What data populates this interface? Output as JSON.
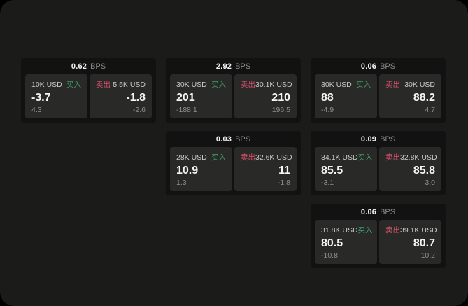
{
  "labels": {
    "bps_unit": "BPS",
    "buy": "买入",
    "sell": "卖出"
  },
  "colors": {
    "buy_green": "#3ca06a",
    "sell_red": "#d4506a",
    "window_bg": "#1b1b1a",
    "card_bg": "#121212",
    "panel_bg": "#292928"
  },
  "cards": [
    {
      "col": "1",
      "row": "1",
      "bps": "0.62",
      "buy": {
        "amount": "10K USD",
        "value": "-3.7",
        "sub": "4.3"
      },
      "sell": {
        "amount": "5.5K USD",
        "value": "-1.8",
        "sub": "-2.6"
      }
    },
    {
      "col": "2",
      "row": "1",
      "bps": "2.92",
      "buy": {
        "amount": "30K USD",
        "value": "201",
        "sub": "-188.1"
      },
      "sell": {
        "amount": "30.1K USD",
        "value": "210",
        "sub": "196.5"
      }
    },
    {
      "col": "3",
      "row": "1",
      "bps": "0.06",
      "buy": {
        "amount": "30K USD",
        "value": "88",
        "sub": "-4.9"
      },
      "sell": {
        "amount": "30K USD",
        "value": "88.2",
        "sub": "4.7"
      }
    },
    {
      "col": "2",
      "row": "2",
      "bps": "0.03",
      "buy": {
        "amount": "28K USD",
        "value": "10.9",
        "sub": "1.3"
      },
      "sell": {
        "amount": "32.6K USD",
        "value": "11",
        "sub": "-1.8"
      }
    },
    {
      "col": "3",
      "row": "2",
      "bps": "0.09",
      "buy": {
        "amount": "34.1K USD",
        "value": "85.5",
        "sub": "-3.1"
      },
      "sell": {
        "amount": "32.8K USD",
        "value": "85.8",
        "sub": "3.0"
      }
    },
    {
      "col": "3",
      "row": "3",
      "bps": "0.06",
      "buy": {
        "amount": "31.8K USD",
        "value": "80.5",
        "sub": "-10.8"
      },
      "sell": {
        "amount": "39.1K USD",
        "value": "80.7",
        "sub": "10.2"
      }
    }
  ]
}
